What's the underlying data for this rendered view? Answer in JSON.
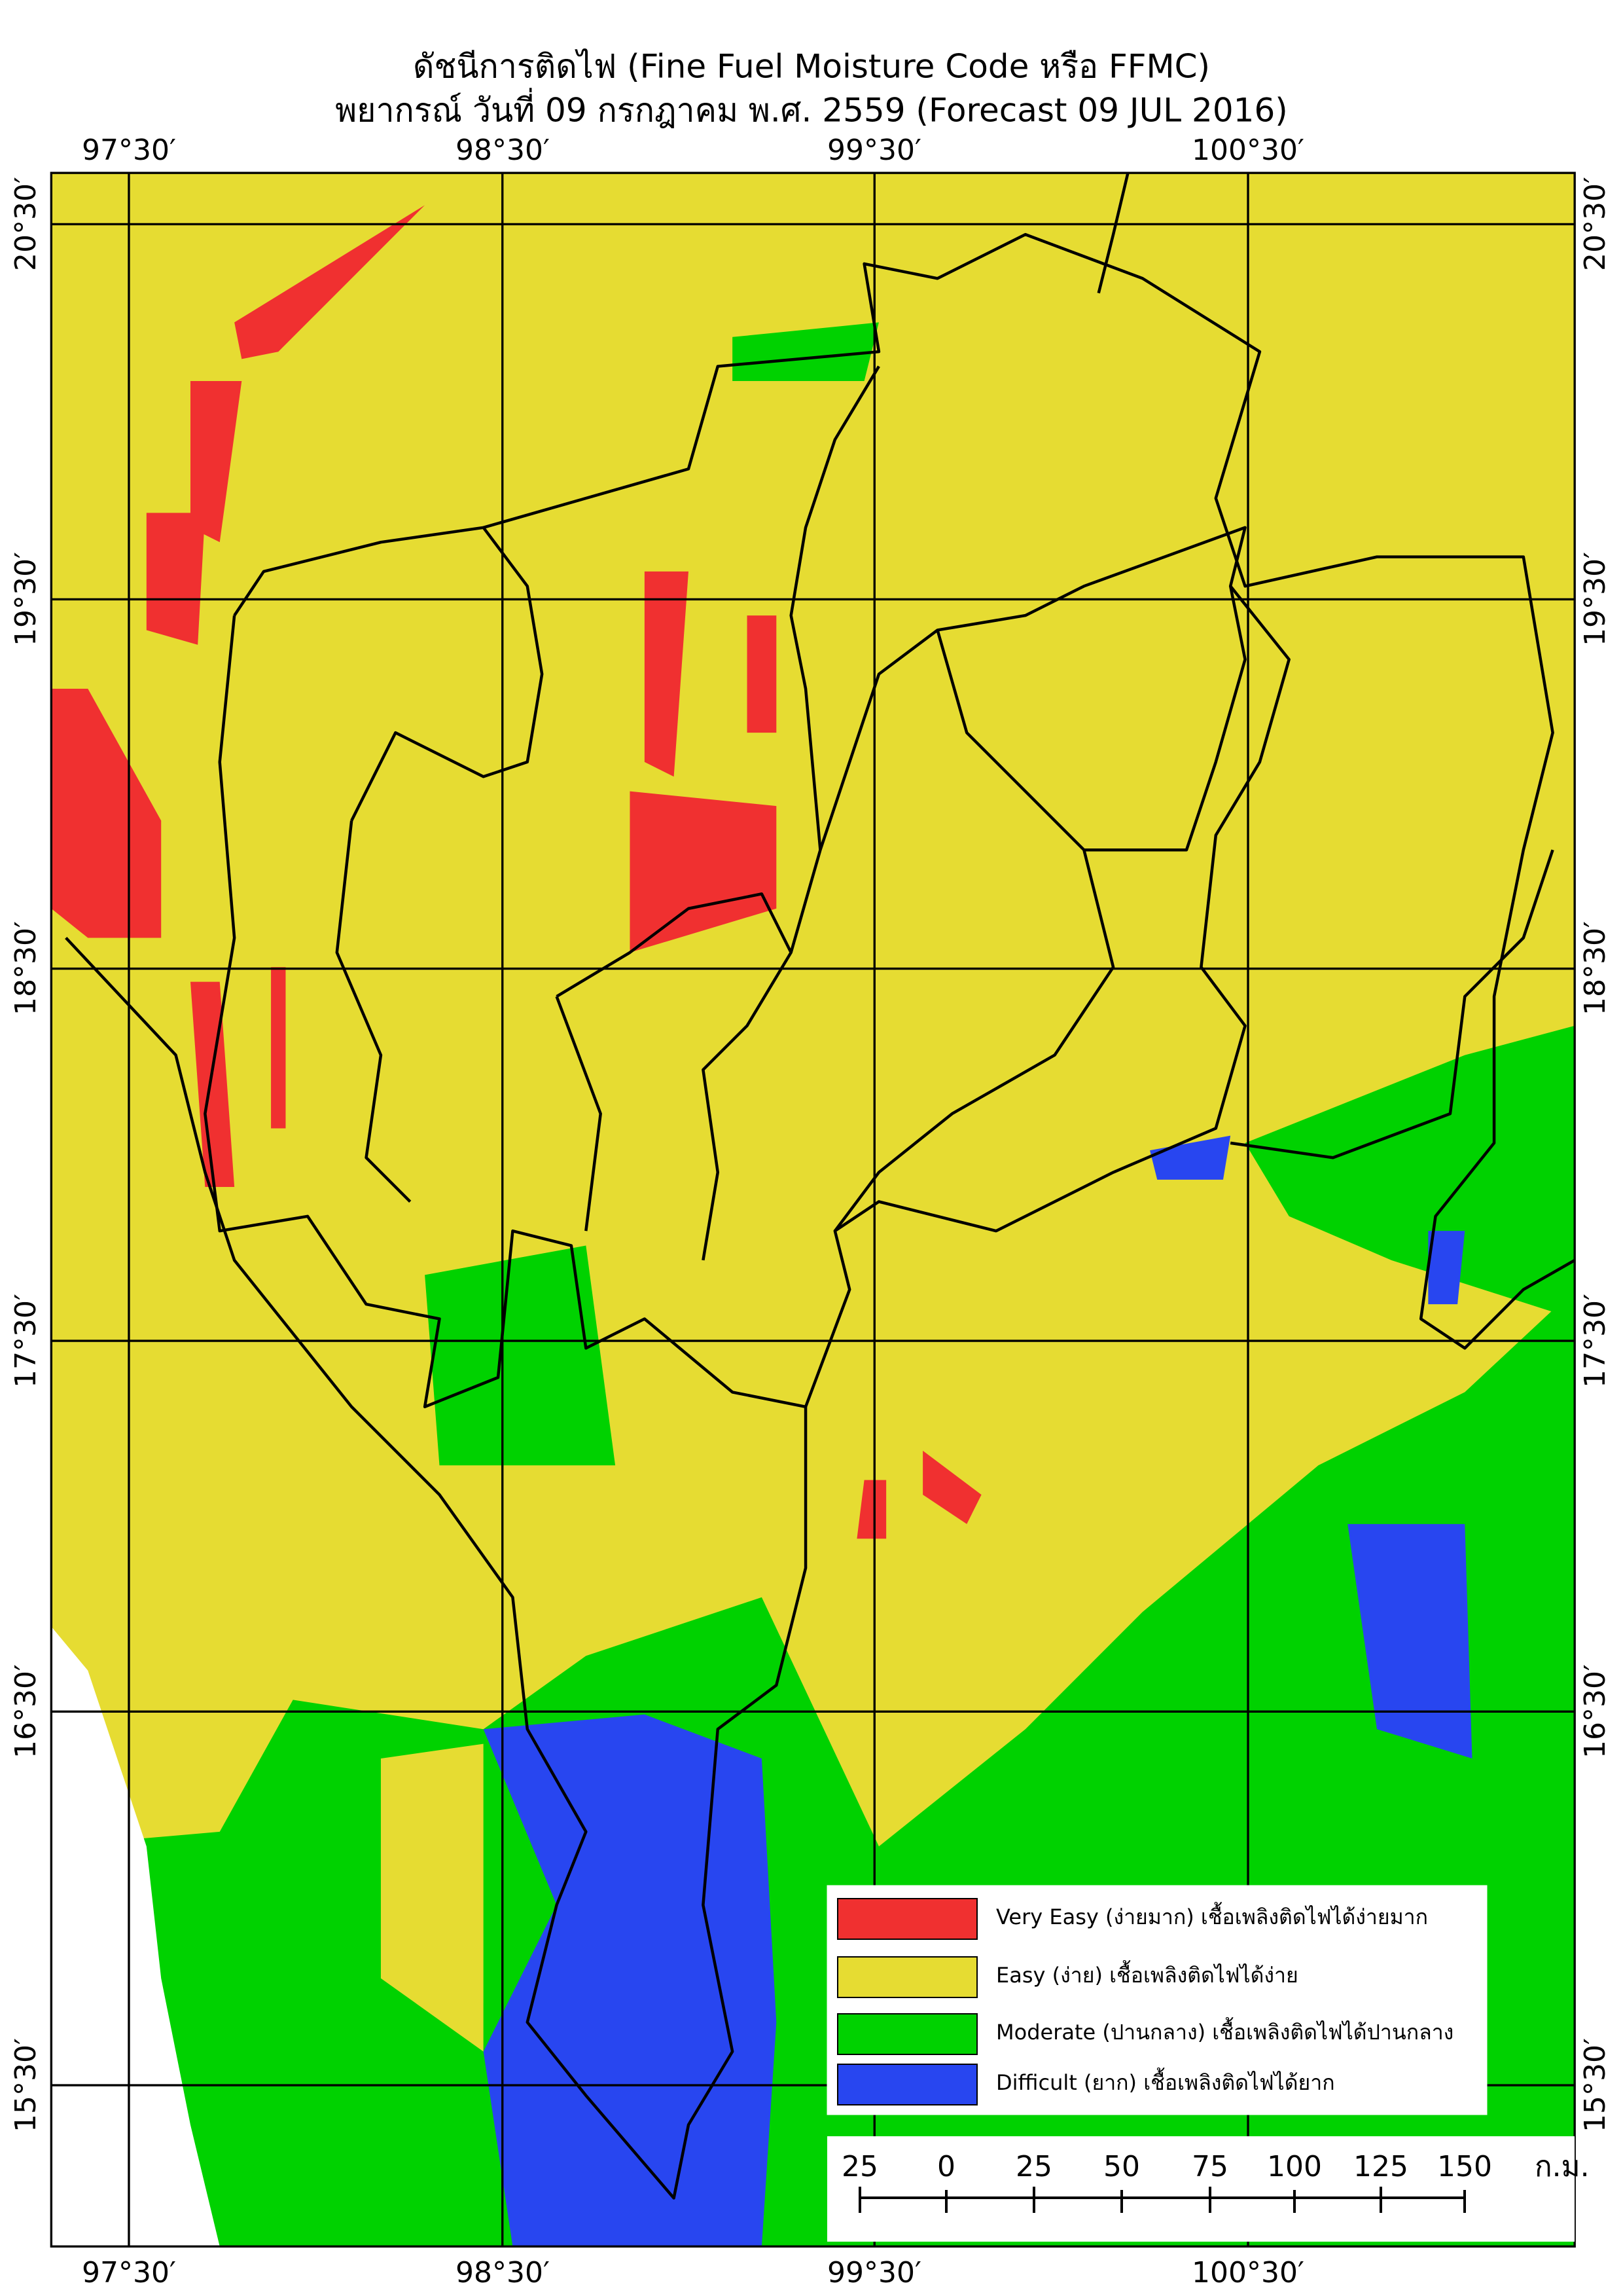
{
  "header": {
    "title": "ดัชนีการติดไฟ (Fine Fuel Moisture Code หรือ FFMC)",
    "subtitle": "พยากรณ์ วันที่ 09 กรกฎาคม พ.ศ. 2559 (Forecast 09 JUL 2016)"
  },
  "map": {
    "lon_labels_top": [
      "97°30′",
      "98°30′",
      "99°30′",
      "100°30′"
    ],
    "lon_labels_bottom": [
      "97°30′",
      "98°30′",
      "99°30′",
      "100°30′"
    ],
    "lat_labels_left": [
      "20°30′",
      "19°30′",
      "18°30′",
      "17°30′",
      "16°30′",
      "15°30′"
    ],
    "lat_labels_right": [
      "20°30′",
      "19°30′",
      "18°30′",
      "17°30′",
      "16°30′",
      "15°30′"
    ]
  },
  "legend": {
    "items": [
      {
        "label": "Very Easy (ง่ายมาก) เชื้อเพลิงติดไฟได้ง่ายมาก",
        "color": "#f03030"
      },
      {
        "label": "Easy (ง่าย) เชื้อเพลิงติดไฟได้ง่าย",
        "color": "#e6dc32"
      },
      {
        "label": "Moderate (ปานกลาง) เชื้อเพลิงติดไฟได้ปานกลาง",
        "color": "#00d200"
      },
      {
        "label": "Difficult (ยาก) เชื้อเพลิงติดไฟได้ยาก",
        "color": "#2846f0"
      }
    ]
  },
  "scale_bar": {
    "labels": [
      "25",
      "0",
      "25",
      "50",
      "75",
      "100",
      "125",
      "150"
    ],
    "unit": "ก.ม."
  }
}
